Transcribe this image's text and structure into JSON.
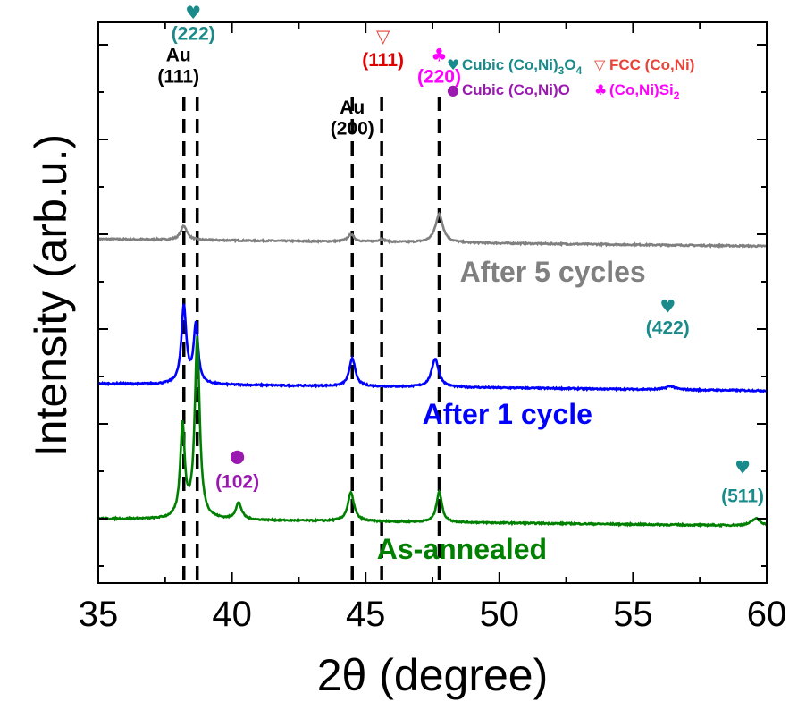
{
  "chart_data": {
    "type": "line",
    "xlabel": "2θ (degree)",
    "ylabel": "Intensity (arb.u.)",
    "xlim": [
      35,
      60
    ],
    "x_ticks": [
      "35",
      "40",
      "45",
      "50",
      "55",
      "60"
    ],
    "y_ticks_labeled": false,
    "grid": false,
    "series": [
      {
        "name": "After 5 cycles",
        "color": "#808080",
        "baseline": 1.18,
        "peaks": [
          {
            "x": 38.2,
            "height": 0.06,
            "width": 0.14
          },
          {
            "x": 44.45,
            "height": 0.03,
            "width": 0.15
          },
          {
            "x": 45.6,
            "height": 0.012,
            "width": 0.15
          },
          {
            "x": 47.75,
            "height": 0.12,
            "width": 0.17
          }
        ]
      },
      {
        "name": "After 1 cycle",
        "color": "#0000FF",
        "baseline": 0.57,
        "peaks": [
          {
            "x": 38.2,
            "height": 0.33,
            "width": 0.11
          },
          {
            "x": 38.65,
            "height": 0.25,
            "width": 0.1
          },
          {
            "x": 44.5,
            "height": 0.12,
            "width": 0.13
          },
          {
            "x": 47.6,
            "height": 0.12,
            "width": 0.16
          },
          {
            "x": 56.4,
            "height": 0.015,
            "width": 0.2
          }
        ]
      },
      {
        "name": "As-annealed",
        "color": "#008000",
        "baseline": 0.0,
        "peaks": [
          {
            "x": 38.15,
            "height": 0.39,
            "width": 0.1
          },
          {
            "x": 38.7,
            "height": 0.76,
            "width": 0.11
          },
          {
            "x": 40.25,
            "height": 0.07,
            "width": 0.13
          },
          {
            "x": 44.45,
            "height": 0.12,
            "width": 0.14
          },
          {
            "x": 47.75,
            "height": 0.13,
            "width": 0.12
          },
          {
            "x": 59.6,
            "height": 0.03,
            "width": 0.2
          }
        ]
      }
    ],
    "reference_lines": [
      38.2,
      38.7,
      44.5,
      45.6,
      47.75
    ],
    "annotations": [
      {
        "text": "Au",
        "x": 38.0,
        "y_level": 1.93,
        "color": "#000000"
      },
      {
        "text": "(111)",
        "x": 38.0,
        "y_level": 1.84,
        "color": "#000000"
      },
      {
        "text": "♥",
        "x": 38.55,
        "y_level": 2.11,
        "color": "#1A8A8A",
        "marker": true
      },
      {
        "text": "(222)",
        "x": 38.55,
        "y_level": 2.02,
        "color": "#1A8A8A"
      },
      {
        "text": "Au",
        "x": 44.5,
        "y_level": 1.71,
        "color": "#000000"
      },
      {
        "text": "(200)",
        "x": 44.5,
        "y_level": 1.62,
        "color": "#000000"
      },
      {
        "text": "▽",
        "x": 45.65,
        "y_level": 2.01,
        "color": "#E8443A",
        "marker": true
      },
      {
        "text": "(111)",
        "x": 45.65,
        "y_level": 1.91,
        "color": "#E00000"
      },
      {
        "text": "♣",
        "x": 47.75,
        "y_level": 1.93,
        "color": "#FF00FF",
        "marker": true
      },
      {
        "text": "(220)",
        "x": 47.75,
        "y_level": 1.84,
        "color": "#FF00FF"
      },
      {
        "text": "♥",
        "x": 56.3,
        "y_level": 0.87,
        "color": "#1A8A8A",
        "marker": true
      },
      {
        "text": "(422)",
        "x": 56.3,
        "y_level": 0.78,
        "color": "#1A8A8A"
      },
      {
        "text": "●",
        "x": 40.2,
        "y_level": 0.24,
        "color": "#9A1AB0",
        "marker": true
      },
      {
        "text": "(102)",
        "x": 40.2,
        "y_level": 0.13,
        "color": "#9A1AB0"
      },
      {
        "text": "♥",
        "x": 59.1,
        "y_level": 0.19,
        "color": "#1A8A8A",
        "marker": true
      },
      {
        "text": "(511)",
        "x": 59.1,
        "y_level": 0.07,
        "color": "#1A8A8A"
      }
    ],
    "series_labels": [
      {
        "text": "After 5 cycles",
        "x": 52.0,
        "y_level": 1.0,
        "color": "#808080"
      },
      {
        "text": "After 1 cycle",
        "x": 50.3,
        "y_level": 0.4,
        "color": "#0000FF"
      },
      {
        "text": "As-annealed",
        "x": 48.6,
        "y_level": -0.17,
        "color": "#008000"
      }
    ],
    "legend": {
      "position": "top-right",
      "items": [
        {
          "symbol": "♥",
          "label": "Cubic (Co,Ni)",
          "sub": "3",
          "label_after": "O",
          "sub2": "4",
          "color": "#1A8A8A"
        },
        {
          "symbol": "▽",
          "label": "FCC (Co,Ni)",
          "color": "#E8443A"
        },
        {
          "symbol": "●",
          "label": "Cubic (Co,Ni)O",
          "color": "#9A1AB0"
        },
        {
          "symbol": "♣",
          "label": "(Co,Ni)Si",
          "sub": "2",
          "color": "#FF00FF"
        }
      ]
    }
  }
}
